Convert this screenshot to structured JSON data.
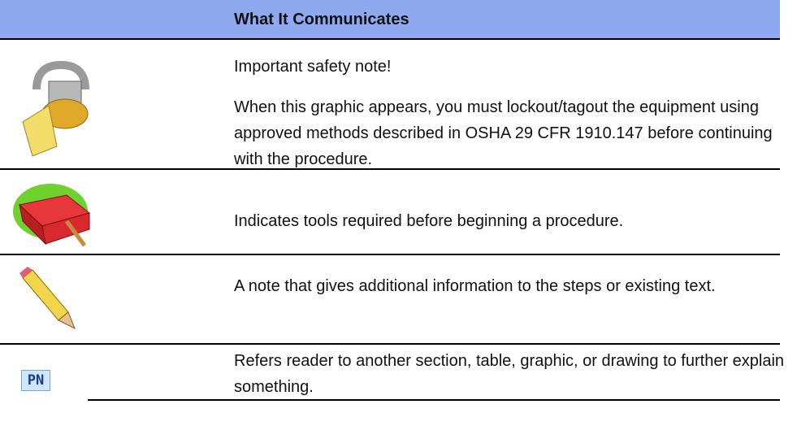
{
  "table": {
    "header": "What It Communicates",
    "rows": [
      {
        "paragraphs": [
          "Important safety note!",
          "When this graphic appears, you must lockout/tagout the equipment using approved methods described in OSHA 29 CFR 1910.147 before continuing with the procedure."
        ]
      },
      {
        "paragraphs": [
          "Indicates tools required before beginning a procedure."
        ]
      },
      {
        "paragraphs": [
          "A note that gives additional information to the steps or existing text."
        ]
      },
      {
        "icon_label": "PN",
        "paragraphs": [
          "Refers reader to another section, table, graphic, or drawing to further explain something."
        ]
      }
    ]
  }
}
